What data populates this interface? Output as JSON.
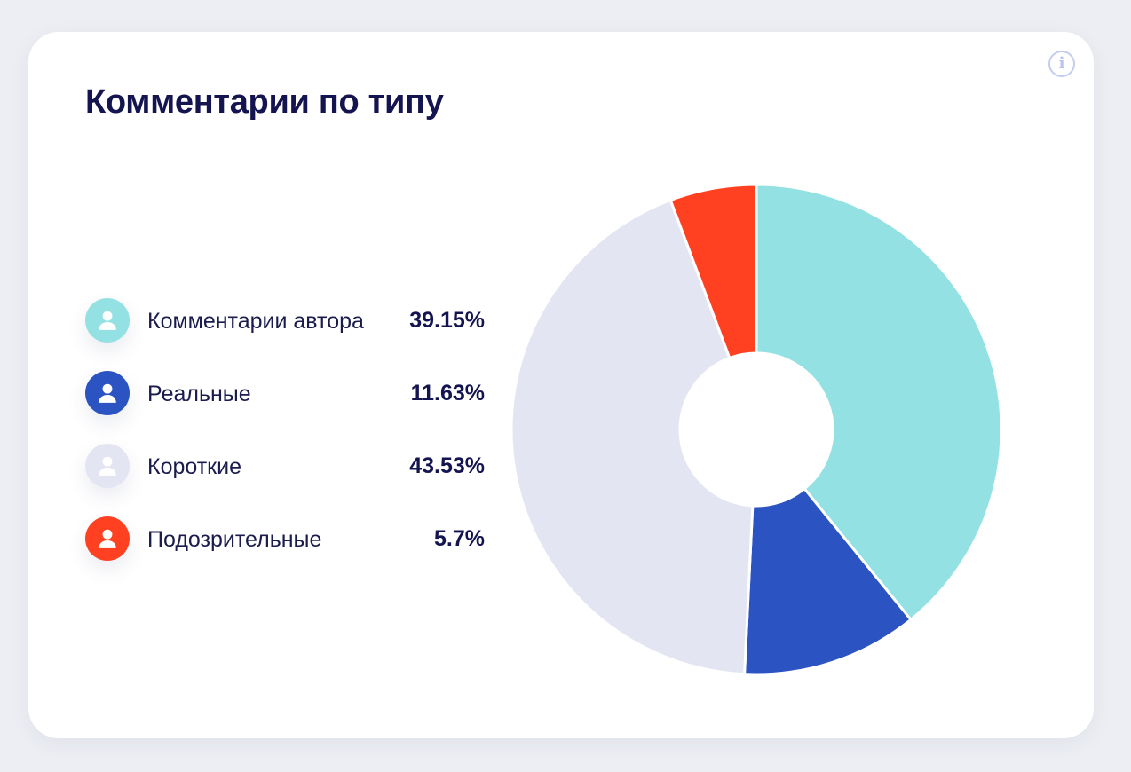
{
  "card": {
    "title": "Комментарии по типу",
    "info_icon": "info-icon",
    "info_glyph": "i"
  },
  "chart_data": {
    "type": "pie",
    "variant": "donut",
    "title": "Комментарии по типу",
    "categories": [
      "Комментарии автора",
      "Реальные",
      "Короткие",
      "Подозрительные"
    ],
    "values": [
      39.15,
      11.63,
      43.53,
      5.7
    ],
    "value_labels": [
      "39.15%",
      "11.63%",
      "43.53%",
      "5.7%"
    ],
    "colors": [
      "#93e1e3",
      "#2b53c1",
      "#e3e5f2",
      "#ff4122"
    ],
    "start_angle": "12 o'clock",
    "direction": "clockwise",
    "legend_position": "left",
    "legend_icon": "user-icon"
  }
}
